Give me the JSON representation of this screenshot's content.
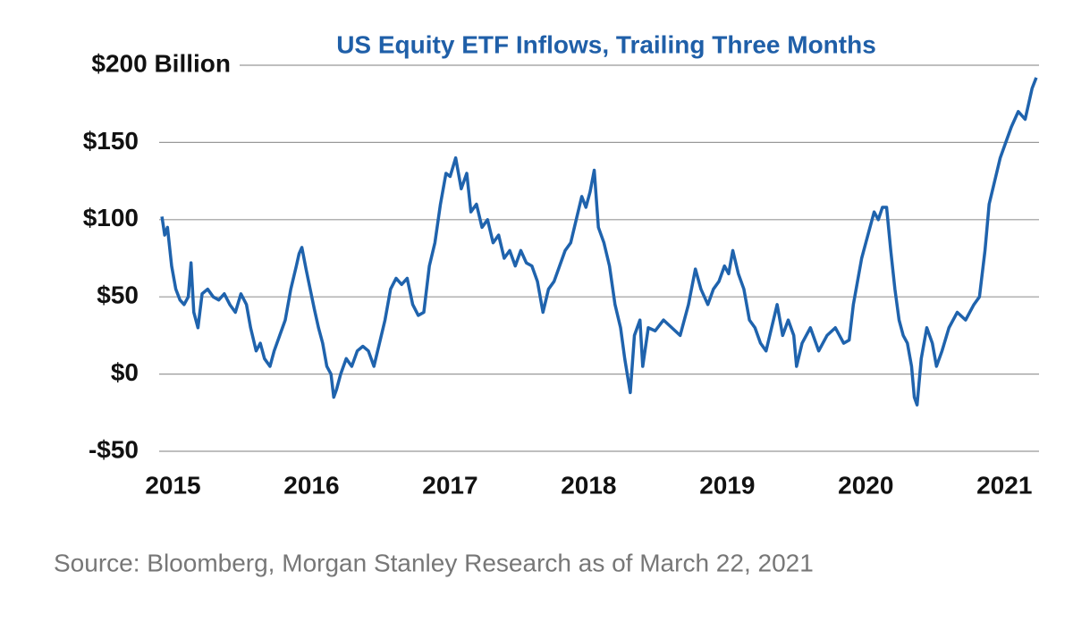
{
  "chart_data": {
    "type": "line",
    "title": "US Equity ETF Inflows, Trailing Three Months",
    "source": "Source: Bloomberg, Morgan Stanley Research as of March 22, 2021",
    "color": "#1f63ad",
    "grid": true,
    "xlim": [
      2014.9,
      2021.25
    ],
    "xticks": [
      2015,
      2016,
      2017,
      2018,
      2019,
      2020,
      2021
    ],
    "ylim": [
      -50,
      200
    ],
    "yticks": [
      {
        "value": -50,
        "label": "-$50"
      },
      {
        "value": 0,
        "label": "$0"
      },
      {
        "value": 50,
        "label": "$50"
      },
      {
        "value": 100,
        "label": "$100"
      },
      {
        "value": 150,
        "label": "$150"
      },
      {
        "value": 200,
        "label": "$200 Billion"
      }
    ],
    "x": [
      2014.92,
      2014.94,
      2014.96,
      2014.99,
      2015.02,
      2015.05,
      2015.08,
      2015.11,
      2015.13,
      2015.15,
      2015.18,
      2015.21,
      2015.25,
      2015.29,
      2015.33,
      2015.37,
      2015.41,
      2015.45,
      2015.49,
      2015.53,
      2015.56,
      2015.6,
      2015.63,
      2015.66,
      2015.7,
      2015.73,
      2015.77,
      2015.81,
      2015.85,
      2015.89,
      2015.91,
      2015.93,
      2015.96,
      2015.99,
      2016.02,
      2016.05,
      2016.08,
      2016.11,
      2016.14,
      2016.16,
      2016.18,
      2016.21,
      2016.25,
      2016.29,
      2016.33,
      2016.37,
      2016.41,
      2016.45,
      2016.49,
      2016.53,
      2016.57,
      2016.61,
      2016.65,
      2016.69,
      2016.73,
      2016.77,
      2016.81,
      2016.85,
      2016.89,
      2016.93,
      2016.97,
      2017.0,
      2017.04,
      2017.08,
      2017.12,
      2017.15,
      2017.19,
      2017.23,
      2017.27,
      2017.31,
      2017.35,
      2017.39,
      2017.43,
      2017.47,
      2017.51,
      2017.55,
      2017.59,
      2017.63,
      2017.67,
      2017.71,
      2017.75,
      2017.79,
      2017.83,
      2017.87,
      2017.91,
      2017.95,
      2017.98,
      2018.01,
      2018.04,
      2018.07,
      2018.11,
      2018.15,
      2018.19,
      2018.23,
      2018.26,
      2018.3,
      2018.33,
      2018.37,
      2018.39,
      2018.43,
      2018.48,
      2018.54,
      2018.6,
      2018.66,
      2018.72,
      2018.77,
      2018.81,
      2018.86,
      2018.9,
      2018.94,
      2018.98,
      2019.01,
      2019.04,
      2019.08,
      2019.12,
      2019.16,
      2019.2,
      2019.24,
      2019.28,
      2019.32,
      2019.36,
      2019.4,
      2019.44,
      2019.48,
      2019.5,
      2019.54,
      2019.6,
      2019.66,
      2019.72,
      2019.78,
      2019.84,
      2019.88,
      2019.91,
      2019.94,
      2019.97,
      2020.0,
      2020.03,
      2020.06,
      2020.09,
      2020.12,
      2020.15,
      2020.18,
      2020.21,
      2020.24,
      2020.27,
      2020.3,
      2020.33,
      2020.35,
      2020.37,
      2020.4,
      2020.44,
      2020.48,
      2020.51,
      2020.55,
      2020.6,
      2020.66,
      2020.72,
      2020.78,
      2020.82,
      2020.86,
      2020.89,
      2020.93,
      2020.97,
      2021.01,
      2021.05,
      2021.1,
      2021.15,
      2021.2,
      2021.23
    ],
    "values": [
      102,
      90,
      95,
      70,
      55,
      48,
      45,
      50,
      72,
      40,
      30,
      52,
      55,
      50,
      48,
      52,
      45,
      40,
      52,
      45,
      30,
      15,
      20,
      10,
      5,
      15,
      25,
      35,
      55,
      70,
      78,
      82,
      68,
      55,
      42,
      30,
      20,
      5,
      0,
      -15,
      -10,
      0,
      10,
      5,
      15,
      18,
      15,
      5,
      20,
      35,
      55,
      62,
      58,
      62,
      45,
      38,
      40,
      70,
      85,
      110,
      130,
      128,
      140,
      120,
      130,
      105,
      110,
      95,
      100,
      85,
      90,
      75,
      80,
      70,
      80,
      72,
      70,
      60,
      40,
      55,
      60,
      70,
      80,
      85,
      100,
      115,
      108,
      118,
      132,
      95,
      85,
      70,
      45,
      30,
      10,
      -12,
      25,
      35,
      5,
      30,
      28,
      35,
      30,
      25,
      45,
      68,
      55,
      45,
      55,
      60,
      70,
      65,
      80,
      65,
      55,
      35,
      30,
      20,
      15,
      30,
      45,
      25,
      35,
      25,
      5,
      20,
      30,
      15,
      25,
      30,
      20,
      22,
      45,
      60,
      75,
      85,
      95,
      105,
      100,
      108,
      108,
      80,
      55,
      35,
      25,
      20,
      5,
      -15,
      -20,
      10,
      30,
      20,
      5,
      15,
      30,
      40,
      35,
      45,
      50,
      80,
      110,
      125,
      140,
      150,
      160,
      170,
      165,
      185,
      192
    ]
  }
}
